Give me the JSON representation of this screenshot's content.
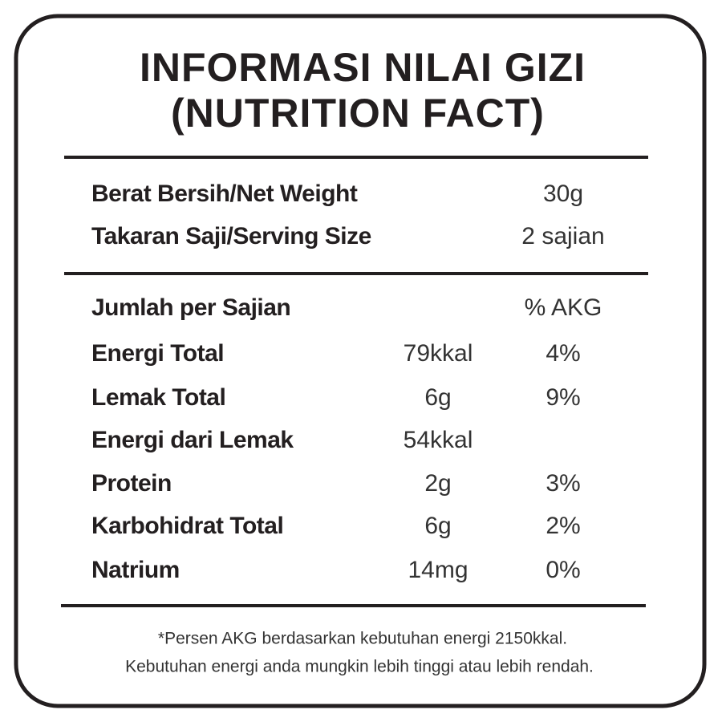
{
  "title": {
    "line1": "INFORMASI NILAI GIZI",
    "line2": "(NUTRITION FACT)"
  },
  "serving": {
    "rows": [
      {
        "label": "Berat Bersih/Net Weight",
        "value": "30g"
      },
      {
        "label": "Takaran Saji/Serving Size",
        "value": "2 sajian"
      }
    ]
  },
  "nutrients": {
    "header": {
      "label": "Jumlah per Sajian",
      "akg": "% AKG"
    },
    "rows": [
      {
        "label": "Energi Total",
        "amount": "79kkal",
        "akg": "4%"
      },
      {
        "label": "Lemak Total",
        "amount": "6g",
        "akg": "9%"
      },
      {
        "label": "Energi dari Lemak",
        "amount": "54kkal"
      },
      {
        "label": "Protein",
        "amount": "2g",
        "akg": "3%"
      },
      {
        "label": "Karbohidrat Total",
        "amount": "6g",
        "akg": "2%"
      },
      {
        "label": "Natrium",
        "amount": "14mg",
        "akg": "0%"
      }
    ]
  },
  "footnote": {
    "line1": "*Persen AKG berdasarkan kebutuhan energi 2150kkal.",
    "line2": "Kebutuhan energi anda mungkin lebih tinggi atau lebih rendah."
  }
}
